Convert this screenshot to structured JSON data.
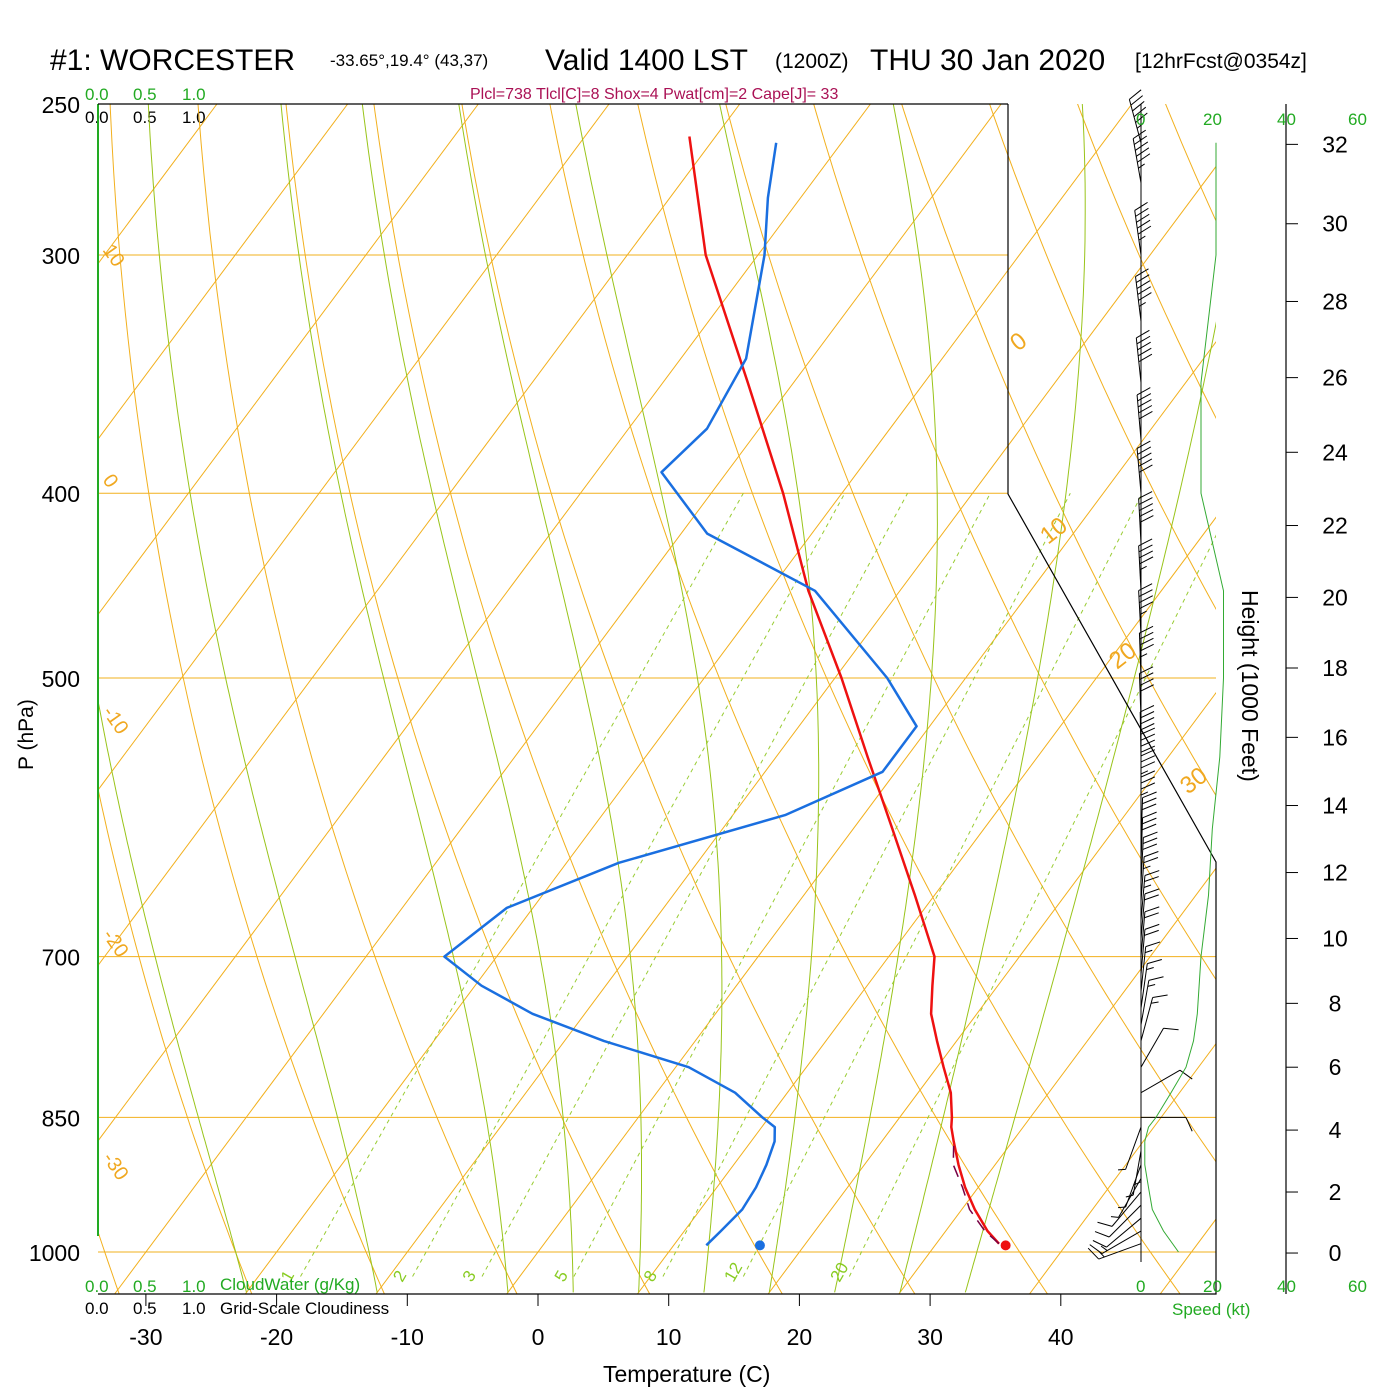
{
  "header": {
    "station": "#1: WORCESTER",
    "coords": "-33.65°,19.4° (43,37)",
    "valid": "Valid 1400 LST",
    "zulu": "(1200Z)",
    "date": "THU 30 Jan 2020",
    "forecast": "[12hrFcst@0354z]"
  },
  "indices": "Plcl=738 Tlcl[C]=8 Shox=4 Pwat[cm]=2 Cape[J]= 33",
  "cloud_scale": {
    "ticks": [
      "0.0",
      "0.5",
      "1.0"
    ],
    "cloudwater_label": "CloudWater (g/Kg)",
    "cloudiness_label": "Grid-Scale Cloudiness"
  },
  "wind_speed_axis": {
    "ticks": [
      "0",
      "20",
      "40",
      "60"
    ],
    "label": "Speed (kt)"
  },
  "colors": {
    "temperature": "#ee1111",
    "dewpoint": "#1a6fe0",
    "isotherm": "#f2b01e",
    "dry_adiabat": "#f2b01e",
    "moist_adiabat": "#99c41a",
    "mixing_ratio": "#99cc33",
    "parcel": "#770044",
    "speed_profile": "#33aa33"
  },
  "chart_data": {
    "type": "line",
    "title": "#1: WORCESTER Valid 1400 LST (1200Z) THU 30 Jan 2020",
    "xlabel": "Temperature (C)",
    "ylabel": "P (hPa)",
    "y2label": "Height (1000 Feet)",
    "x_ticks": [
      "-30",
      "-20",
      "-10",
      "0",
      "10",
      "20",
      "30",
      "40"
    ],
    "pressure_ticks": [
      "250",
      "300",
      "400",
      "500",
      "700",
      "850",
      "1000"
    ],
    "height_ticks": [
      "0",
      "2",
      "4",
      "6",
      "8",
      "10",
      "12",
      "14",
      "16",
      "18",
      "20",
      "22",
      "24",
      "26",
      "28",
      "30",
      "32"
    ],
    "isotherm_labels": [
      "10",
      "0",
      "-10",
      "-20",
      "-30"
    ],
    "right_labels": [
      "0",
      "10",
      "20",
      "30"
    ],
    "mixing_ratio_labels": [
      "1",
      "2",
      "3",
      "5",
      "8",
      "12",
      "20"
    ],
    "ylim": [
      250,
      1050
    ],
    "series": [
      {
        "name": "Temperature",
        "pressure": [
          990,
          975,
          950,
          925,
          900,
          875,
          860,
          850,
          825,
          800,
          775,
          750,
          725,
          700,
          650,
          600,
          550,
          500,
          450,
          400,
          350,
          300,
          260
        ],
        "values": [
          34.8,
          33.2,
          31.0,
          29.0,
          27.2,
          25.5,
          24.5,
          24.0,
          22.5,
          20.5,
          18.5,
          16.5,
          15.0,
          13.5,
          8.5,
          3.0,
          -3.0,
          -9.5,
          -17.0,
          -24.5,
          -33.5,
          -44.0,
          -52.0
        ]
      },
      {
        "name": "Dewpoint",
        "pressure": [
          992,
          975,
          950,
          925,
          900,
          875,
          860,
          850,
          825,
          800,
          775,
          750,
          725,
          700,
          660,
          625,
          590,
          560,
          530,
          500,
          450,
          420,
          390,
          370,
          340,
          300,
          280,
          262
        ],
        "values": [
          12.5,
          12.8,
          13.2,
          13.0,
          12.5,
          11.8,
          11.0,
          9.5,
          6.0,
          1.0,
          -7.0,
          -14.0,
          -19.5,
          -24.0,
          -22.0,
          -16.0,
          -6.0,
          -1.0,
          -1.0,
          -6.0,
          -16.5,
          -28.0,
          -35.0,
          -34.0,
          -35.0,
          -39.5,
          -42.5,
          -45.0
        ]
      },
      {
        "name": "Parcel",
        "pressure": [
          990,
          975,
          950,
          925,
          900,
          875
        ],
        "values": [
          34.8,
          33.0,
          30.6,
          28.8,
          26.8,
          25.5
        ]
      }
    ],
    "surface_points": {
      "temperature": 35.4,
      "dewpoint": 16.6,
      "pressure": 992
    },
    "wind_barbs": {
      "pressure": [
        990,
        975,
        960,
        945,
        930,
        915,
        900,
        885,
        870,
        860,
        850,
        825,
        800,
        775,
        760,
        745,
        730,
        715,
        700,
        685,
        670,
        655,
        640,
        625,
        610,
        595,
        580,
        565,
        550,
        525,
        500,
        475,
        450,
        425,
        400,
        375,
        350,
        325,
        300,
        275,
        262
      ],
      "direction": [
        250,
        240,
        230,
        225,
        220,
        210,
        200,
        190,
        180,
        200,
        90,
        60,
        30,
        15,
        10,
        8,
        6,
        5,
        5,
        5,
        5,
        4,
        3,
        2,
        2,
        0,
        0,
        0,
        359,
        358,
        358,
        357,
        357,
        357,
        355,
        355,
        354,
        353,
        352,
        350,
        345
      ],
      "speed": [
        14,
        13,
        12,
        10,
        8,
        7,
        6,
        4,
        3,
        5,
        9,
        10,
        11,
        13,
        15,
        16,
        17,
        18,
        20,
        22,
        25,
        27,
        28,
        30,
        32,
        34,
        36,
        38,
        40,
        42,
        43,
        45,
        47,
        48,
        50,
        50,
        52,
        53,
        55,
        55,
        56
      ]
    },
    "speed_profile": {
      "pressure": [
        1000,
        975,
        950,
        925,
        900,
        875,
        860,
        850,
        825,
        800,
        775,
        750,
        700,
        650,
        600,
        550,
        500,
        450,
        400,
        350,
        300,
        262
      ],
      "speed": [
        10,
        6,
        3,
        2,
        1,
        1,
        2,
        4,
        8,
        12,
        14,
        15,
        16,
        18,
        19,
        21,
        22,
        22,
        16,
        16,
        20,
        20
      ]
    },
    "grid": true,
    "legend": "none"
  }
}
